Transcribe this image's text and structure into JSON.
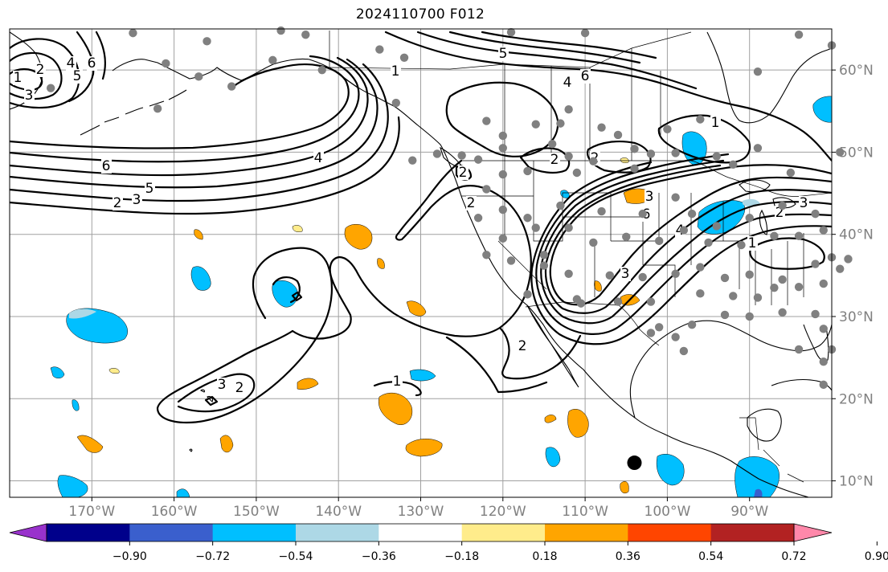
{
  "title": "2024110700 F012",
  "map": {
    "extent": {
      "lon_min": -180,
      "lon_max": -80,
      "lat_min": 8,
      "lat_max": 65
    },
    "lon_ticks": [
      {
        "lon": -170,
        "label": "170°W"
      },
      {
        "lon": -160,
        "label": "160°W"
      },
      {
        "lon": -150,
        "label": "150°W"
      },
      {
        "lon": -140,
        "label": "140°W"
      },
      {
        "lon": -130,
        "label": "130°W"
      },
      {
        "lon": -120,
        "label": "120°W"
      },
      {
        "lon": -110,
        "label": "110°W"
      },
      {
        "lon": -100,
        "label": "100°W"
      },
      {
        "lon": -90,
        "label": "90°W"
      }
    ],
    "lat_ticks": [
      {
        "lat": 60,
        "label": "60°N"
      },
      {
        "lat": 50,
        "label": "50°N"
      },
      {
        "lat": 40,
        "label": "40°N"
      },
      {
        "lat": 30,
        "label": "30°N"
      },
      {
        "lat": 20,
        "label": "20°N"
      },
      {
        "lat": 10,
        "label": "10°N"
      }
    ],
    "grid": true,
    "colors": {
      "grid": "#a0a0a0",
      "tick_label": "#808080",
      "contour": "#000000",
      "station": "#808080"
    }
  },
  "colorbar": {
    "extend": "both",
    "bounds": [
      -0.9,
      -0.72,
      -0.54,
      -0.36,
      -0.18,
      0.18,
      0.36,
      0.54,
      0.72,
      0.9
    ],
    "labels": [
      "−0.90",
      "−0.72",
      "−0.54",
      "−0.36",
      "−0.18",
      "0.18",
      "0.36",
      "0.54",
      "0.72",
      "0.90"
    ],
    "colors": [
      "#9932cc",
      "#00008b",
      "#3a5fcd",
      "#00bfff",
      "#add8e6",
      "#ffffff",
      "#ffec8b",
      "#ffa500",
      "#ff4500",
      "#b22222",
      "#ff88aa"
    ]
  },
  "stations": [
    [
      -165,
      64.5
    ],
    [
      -156,
      63.5
    ],
    [
      -147,
      64.8
    ],
    [
      -144,
      64.3
    ],
    [
      -135,
      62.5
    ],
    [
      -132,
      61.5
    ],
    [
      -119,
      64.6
    ],
    [
      -110,
      64.5
    ],
    [
      -175,
      57.8
    ],
    [
      -161,
      60.8
    ],
    [
      -157,
      59.2
    ],
    [
      -153,
      58.0
    ],
    [
      -148,
      61.2
    ],
    [
      -162,
      55.3
    ],
    [
      -142,
      60.0
    ],
    [
      -133,
      56.0
    ],
    [
      -131,
      49.0
    ],
    [
      -128,
      49.8
    ],
    [
      -125,
      49.6
    ],
    [
      -123,
      49.1
    ],
    [
      -122,
      53.8
    ],
    [
      -120,
      50.5
    ],
    [
      -114,
      51.0
    ],
    [
      -113,
      53.5
    ],
    [
      -112,
      49.5
    ],
    [
      -106,
      52.1
    ],
    [
      -104,
      50.4
    ],
    [
      -102,
      49.8
    ],
    [
      -99,
      49.9
    ],
    [
      -96,
      54.0
    ],
    [
      -94,
      49.5
    ],
    [
      -100,
      52.8
    ],
    [
      -112,
      55.2
    ],
    [
      -108,
      53.0
    ],
    [
      -120,
      52.0
    ],
    [
      -116,
      53.4
    ],
    [
      -89,
      59.8
    ],
    [
      -89,
      50.5
    ],
    [
      -84,
      64.3
    ],
    [
      -80,
      63.0
    ],
    [
      -79,
      50.0
    ],
    [
      -85,
      47.5
    ],
    [
      -92,
      48.5
    ],
    [
      -104,
      48.0
    ],
    [
      -109,
      48.9
    ],
    [
      -111,
      47.5
    ],
    [
      -117,
      47.7
    ],
    [
      -120,
      47.3
    ],
    [
      -122,
      45.5
    ],
    [
      -120,
      43.0
    ],
    [
      -123,
      42.0
    ],
    [
      -117,
      42.0
    ],
    [
      -113,
      43.5
    ],
    [
      -108,
      42.8
    ],
    [
      -103,
      42.5
    ],
    [
      -99,
      44.5
    ],
    [
      -97,
      42.5
    ],
    [
      -94,
      41.0
    ],
    [
      -90,
      42.0
    ],
    [
      -86,
      43.5
    ],
    [
      -82,
      42.5
    ],
    [
      -81,
      40.5
    ],
    [
      -84,
      39.8
    ],
    [
      -87,
      39.8
    ],
    [
      -91,
      38.7
    ],
    [
      -95,
      39.0
    ],
    [
      -98,
      40.5
    ],
    [
      -101,
      39.2
    ],
    [
      -105,
      39.7
    ],
    [
      -109,
      39.0
    ],
    [
      -112,
      40.8
    ],
    [
      -116,
      40.8
    ],
    [
      -120,
      39.5
    ],
    [
      -122,
      37.5
    ],
    [
      -119,
      36.8
    ],
    [
      -115,
      36.2
    ],
    [
      -112,
      35.2
    ],
    [
      -107,
      35.0
    ],
    [
      -103,
      34.8
    ],
    [
      -99,
      35.2
    ],
    [
      -96,
      36.0
    ],
    [
      -93,
      34.7
    ],
    [
      -90,
      35.1
    ],
    [
      -86,
      34.5
    ],
    [
      -84,
      33.6
    ],
    [
      -81,
      34.0
    ],
    [
      -79,
      35.8
    ],
    [
      -78,
      37.0
    ],
    [
      -80,
      37.2
    ],
    [
      -82,
      36.4
    ],
    [
      -96,
      32.8
    ],
    [
      -97,
      29.0
    ],
    [
      -98,
      25.8
    ],
    [
      -99,
      27.5
    ],
    [
      -101,
      28.7
    ],
    [
      -93,
      30.2
    ],
    [
      -90,
      30.0
    ],
    [
      -86,
      30.5
    ],
    [
      -82,
      30.3
    ],
    [
      -81,
      28.5
    ],
    [
      -80,
      26.0
    ],
    [
      -81,
      24.5
    ],
    [
      -84,
      26.0
    ],
    [
      -87,
      33.5
    ],
    [
      -89,
      32.3
    ],
    [
      -92,
      32.5
    ],
    [
      -102,
      31.8
    ],
    [
      -106,
      31.8
    ],
    [
      -111,
      32.1
    ],
    [
      -117,
      32.7
    ],
    [
      -115,
      37.5
    ],
    [
      -81,
      21.7
    ],
    [
      -110.5,
      31.6
    ],
    [
      -102,
      28.0
    ]
  ],
  "centre_marker": {
    "lon": -104,
    "lat": 12.2
  }
}
